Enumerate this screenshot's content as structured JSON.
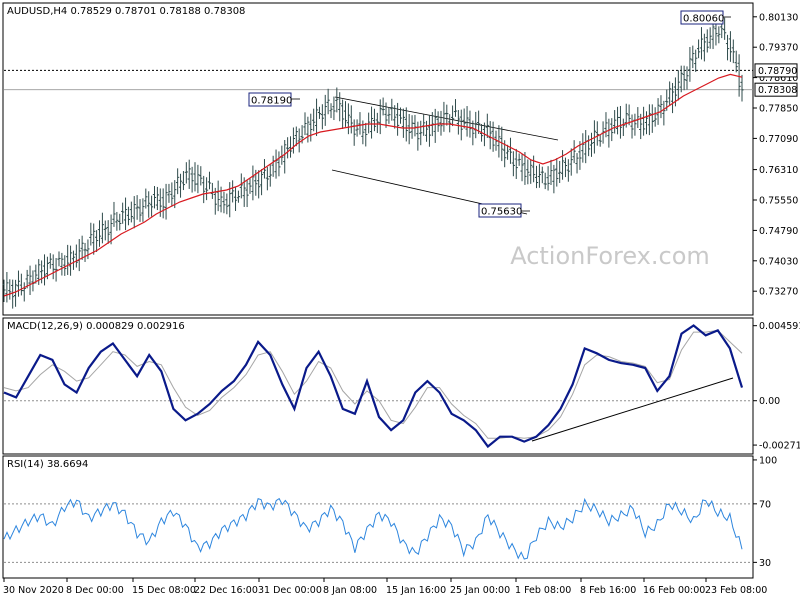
{
  "header": {
    "price_title": "AUDUSD,H4  0.78529 0.78701 0.78188 0.78308",
    "macd_title": "MACD(12,26,9) 0.000829 0.002916",
    "rsi_title": "RSI(14) 38.6694"
  },
  "watermark": "ActionForex.com",
  "colors": {
    "bars": "#2e4a4a",
    "sma": "#d8191f",
    "macd": "#0a1a8a",
    "signal": "#a6a6a6",
    "rsi": "#2e86de",
    "trend": "#000000",
    "grid": "#8f8f8f"
  },
  "chart_data": [
    {
      "type": "ohlc",
      "title": "AUDUSD,H4",
      "last_quote": {
        "open": 0.78529,
        "high": 0.78701,
        "low": 0.78188,
        "close": 0.78308
      },
      "ylim": [
        0.727,
        0.8045
      ],
      "y_ticks": [
        "0.80130",
        "0.79370",
        "0.78610",
        "0.77850",
        "0.77090",
        "0.76310",
        "0.75550",
        "0.74790",
        "0.74030",
        "0.73270"
      ],
      "price_tags": [
        "0.78790",
        "0.78308"
      ],
      "horizontal_levels": [
        0.7879,
        0.78308
      ],
      "annotations": [
        "0.80060",
        "0.78190",
        "0.75630"
      ],
      "series": [
        {
          "name": "AUDUSD",
          "kind": "price",
          "closes": [
            0.733,
            0.7345,
            0.737,
            0.739,
            0.7395,
            0.7405,
            0.743,
            0.7465,
            0.748,
            0.751,
            0.752,
            0.7535,
            0.7555,
            0.755,
            0.7585,
            0.762,
            0.7605,
            0.758,
            0.7545,
            0.7565,
            0.758,
            0.76,
            0.762,
            0.7655,
            0.7695,
            0.7725,
            0.7755,
            0.7785,
            0.7795,
            0.775,
            0.7725,
            0.7745,
            0.7775,
            0.7765,
            0.774,
            0.7725,
            0.7735,
            0.7755,
            0.7765,
            0.7745,
            0.7735,
            0.7725,
            0.7695,
            0.766,
            0.7635,
            0.762,
            0.7605,
            0.7625,
            0.7645,
            0.7675,
            0.7705,
            0.7725,
            0.7745,
            0.7755,
            0.7745,
            0.7755,
            0.7785,
            0.7825,
            0.7865,
            0.7925,
            0.7955,
            0.7985,
            0.7935,
            0.7831
          ]
        },
        {
          "name": "SMA",
          "kind": "moving_average",
          "values": [
            0.7315,
            0.7325,
            0.734,
            0.7355,
            0.737,
            0.7385,
            0.74,
            0.7415,
            0.743,
            0.745,
            0.747,
            0.7485,
            0.75,
            0.752,
            0.7535,
            0.755,
            0.756,
            0.757,
            0.7575,
            0.758,
            0.759,
            0.761,
            0.763,
            0.765,
            0.767,
            0.7695,
            0.7715,
            0.7725,
            0.773,
            0.7735,
            0.774,
            0.7745,
            0.7745,
            0.774,
            0.7735,
            0.7735,
            0.774,
            0.7745,
            0.7745,
            0.774,
            0.7735,
            0.772,
            0.7705,
            0.769,
            0.7675,
            0.7655,
            0.7645,
            0.7655,
            0.767,
            0.769,
            0.7705,
            0.772,
            0.7735,
            0.7745,
            0.7755,
            0.7765,
            0.7775,
            0.7795,
            0.7815,
            0.783,
            0.7845,
            0.786,
            0.7869,
            0.7862
          ]
        }
      ],
      "x_labels": [
        "30 Nov 2020",
        "8 Dec 00:00",
        "15 Dec 08:00",
        "22 Dec 16:00",
        "31 Dec 00:00",
        "8 Jan 08:00",
        "15 Jan 16:00",
        "25 Jan 00:00",
        "1 Feb 08:00",
        "8 Feb 16:00",
        "16 Feb 00:00",
        "23 Feb 08:00"
      ]
    },
    {
      "type": "line",
      "title": "MACD(12,26,9)",
      "ylim": [
        -0.0032,
        0.005
      ],
      "y_ticks": [
        "0.004591",
        "0.00",
        "-0.002715"
      ],
      "series": [
        {
          "name": "MACD",
          "values": [
            0.0005,
            0.0002,
            0.0015,
            0.0028,
            0.0025,
            0.001,
            0.0005,
            0.002,
            0.003,
            0.0035,
            0.0025,
            0.0015,
            0.0028,
            0.0018,
            -0.0005,
            -0.0012,
            -0.0008,
            -0.0002,
            0.0006,
            0.0012,
            0.0022,
            0.0036,
            0.0028,
            0.001,
            -0.0005,
            0.002,
            0.003,
            0.0015,
            -0.0005,
            -0.0008,
            0.0012,
            -0.001,
            -0.0018,
            -0.0012,
            0.0005,
            0.0012,
            0.0005,
            -0.0008,
            -0.0012,
            -0.0018,
            -0.0028,
            -0.0022,
            -0.0022,
            -0.0025,
            -0.0022,
            -0.0015,
            -0.0005,
            0.001,
            0.0032,
            0.0029,
            0.0025,
            0.0023,
            0.0022,
            0.002,
            0.0006,
            0.0015,
            0.0041,
            0.0046,
            0.004,
            0.0043,
            0.0032,
            0.0008
          ]
        },
        {
          "name": "Signal",
          "values": [
            0.0008,
            0.0006,
            0.0008,
            0.0016,
            0.0022,
            0.0018,
            0.0012,
            0.0014,
            0.0022,
            0.003,
            0.0028,
            0.0021,
            0.0024,
            0.0022,
            0.0008,
            -0.0004,
            -0.0009,
            -0.0006,
            0.0002,
            0.0008,
            0.0016,
            0.0028,
            0.003,
            0.0018,
            0.0004,
            0.0012,
            0.0024,
            0.002,
            0.0006,
            -0.0002,
            0.0006,
            0.0,
            -0.0012,
            -0.0014,
            -0.0004,
            0.0008,
            0.0008,
            -0.0002,
            -0.0009,
            -0.0014,
            -0.0023,
            -0.0023,
            -0.0022,
            -0.0023,
            -0.0022,
            -0.0018,
            -0.001,
            0.0004,
            0.0022,
            0.0028,
            0.0027,
            0.0024,
            0.0023,
            0.0021,
            0.0011,
            0.0013,
            0.0031,
            0.0042,
            0.0042,
            0.0043,
            0.0036,
            0.0029
          ]
        }
      ],
      "zero_line": 0.0
    },
    {
      "type": "line",
      "title": "RSI(14)",
      "ylim": [
        20,
        102
      ],
      "y_ticks": [
        "100",
        "70",
        "30"
      ],
      "levels": [
        70,
        30
      ],
      "series": [
        {
          "name": "RSI(14)",
          "values": [
            46,
            52,
            58,
            62,
            55,
            68,
            72,
            60,
            65,
            70,
            63,
            50,
            44,
            58,
            65,
            55,
            40,
            43,
            52,
            57,
            62,
            72,
            68,
            73,
            63,
            53,
            58,
            67,
            57,
            40,
            52,
            63,
            58,
            43,
            36,
            48,
            60,
            55,
            38,
            44,
            62,
            50,
            40,
            32,
            48,
            58,
            54,
            60,
            70,
            66,
            58,
            62,
            67,
            50,
            56,
            70,
            65,
            58,
            73,
            64,
            60,
            39
          ]
        }
      ]
    }
  ]
}
